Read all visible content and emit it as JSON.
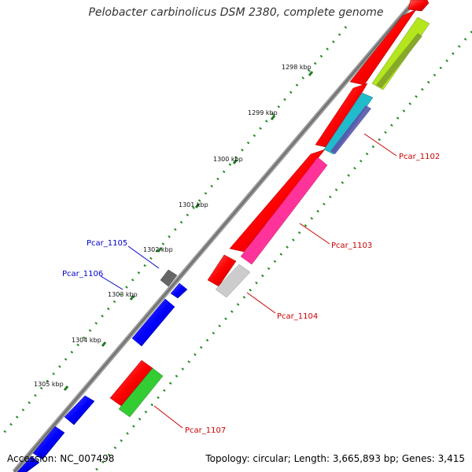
{
  "title": "Pelobacter carbinolicus DSM 2380, complete genome",
  "footer": {
    "accession": "Accession: NC_007498",
    "summary": "Topology: circular; Length: 3,665,893 bp; Genes: 3,415"
  },
  "kbp_ticks": [
    "1298 kbp",
    "1299 kbp",
    "1300 kbp",
    "1301 kbp",
    "1302 kbp",
    "1303 kbp",
    "1304 kbp",
    "1305 kbp"
  ],
  "gene_labels": {
    "pcar_1102": "Pcar_1102",
    "pcar_1103": "Pcar_1103",
    "pcar_1104": "Pcar_1104",
    "pcar_1105": "Pcar_1105",
    "pcar_1106": "Pcar_1106",
    "pcar_1107": "Pcar_1107"
  },
  "colors": {
    "reverse_label": "#0000cc",
    "forward_label": "#cc0000",
    "backbone": "#808080",
    "tick_dots": "#2e8b2e",
    "cds_forward": "#ff0000",
    "cds_reverse": "#0000ff"
  }
}
